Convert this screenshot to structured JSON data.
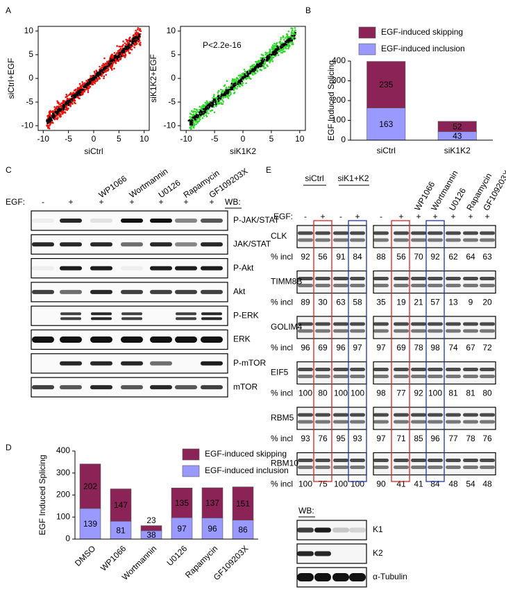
{
  "panel_labels": [
    "A",
    "B",
    "C",
    "D",
    "E"
  ],
  "chart_data": [
    {
      "type": "scatter",
      "xlabel": "siCtrl",
      "ylabel": "siCtrl+EGF",
      "xlim": [
        -11,
        11
      ],
      "ylim": [
        -11,
        11
      ],
      "xticks": [
        -10,
        -5,
        0,
        5,
        10
      ],
      "yticks": [
        -10,
        -5,
        0,
        5,
        10
      ],
      "colors": [
        "#e8140c",
        "#000000"
      ]
    },
    {
      "type": "scatter",
      "xlabel": "siK1K2",
      "ylabel": "siK1K2+EGF",
      "annotation": "P<2.2e-16",
      "xlim": [
        -11,
        11
      ],
      "ylim": [
        -11,
        11
      ],
      "xticks": [
        -10,
        -5,
        0,
        5,
        10
      ],
      "yticks": [
        -10,
        -5,
        0,
        5,
        10
      ],
      "colors": [
        "#2fd82a",
        "#000000"
      ]
    },
    {
      "type": "bar",
      "stacked": true,
      "ylabel": "EGF Induced Splicing",
      "categories": [
        "siCtrl",
        "siK1K2"
      ],
      "series": [
        {
          "name": "EGF-induced inclusion",
          "color": "#9999ff",
          "values": [
            163,
            43
          ]
        },
        {
          "name": "EGF-induced skipping",
          "color": "#8b2357",
          "values": [
            235,
            52
          ]
        }
      ],
      "ylim": [
        0,
        400
      ],
      "yticks": [
        0,
        100,
        200,
        300,
        400
      ]
    },
    {
      "type": "bar",
      "stacked": true,
      "ylabel": "EGF Induced Splicing",
      "categories": [
        "DMSO",
        "WP1066",
        "Wortmannin",
        "U0126",
        "Rapamycin",
        "GF109203X"
      ],
      "series": [
        {
          "name": "EGF-induced inclusion",
          "color": "#9999ff",
          "values": [
            139,
            81,
            38,
            97,
            96,
            86
          ]
        },
        {
          "name": "EGF-induced skipping",
          "color": "#8b2357",
          "values": [
            202,
            147,
            23,
            135,
            137,
            151
          ]
        }
      ],
      "ylim": [
        0,
        400
      ],
      "yticks": [
        0,
        100,
        200,
        300,
        400
      ]
    }
  ],
  "panel_c": {
    "treatments": [
      "WP1066",
      "Wortmannin",
      "U0126",
      "Rapamycin",
      "GF109203X"
    ],
    "egf_label": "EGF:",
    "egf": [
      "-",
      "+",
      "+",
      "+",
      "+",
      "+",
      "+"
    ],
    "wb_label": "WB:",
    "rows": [
      "P-JAK/STAT",
      "JAK/STAT",
      "P-Akt",
      "Akt",
      "P-ERK",
      "ERK",
      "P-mTOR",
      "mTOR"
    ]
  },
  "panel_e": {
    "left_groups": [
      "siCtrl",
      "siK1+K2"
    ],
    "treatments": [
      "WP1066",
      "Wortmannin",
      "U0126",
      "Rapamycin",
      "GF109203X"
    ],
    "egf_label": "EGF:",
    "egf_left": [
      "-",
      "+",
      "-",
      "+"
    ],
    "egf_right": [
      "-",
      "+",
      "+",
      "+",
      "+",
      "+",
      "+"
    ],
    "incl_label": "% incl",
    "genes": [
      {
        "name": "CLK",
        "left": [
          92,
          56,
          91,
          84
        ],
        "right": [
          88,
          56,
          70,
          92,
          62,
          64,
          63
        ]
      },
      {
        "name": "TIMM8B",
        "left": [
          89,
          30,
          63,
          58
        ],
        "right": [
          35,
          19,
          21,
          57,
          13,
          9,
          20
        ]
      },
      {
        "name": "GOLIM4",
        "left": [
          96,
          69,
          96,
          97
        ],
        "right": [
          97,
          69,
          78,
          98,
          74,
          67,
          72
        ]
      },
      {
        "name": "EIF5",
        "left": [
          100,
          80,
          100,
          100
        ],
        "right": [
          98,
          77,
          92,
          100,
          81,
          81,
          80
        ]
      },
      {
        "name": "RBM5",
        "left": [
          93,
          76,
          95,
          93
        ],
        "right": [
          97,
          71,
          85,
          96,
          77,
          78,
          76
        ]
      },
      {
        "name": "RBM10",
        "left": [
          100,
          75,
          100,
          100
        ],
        "right": [
          90,
          41,
          41,
          84,
          48,
          54,
          48
        ]
      }
    ],
    "wb_label": "WB:",
    "wb_rows": [
      "K1",
      "K2",
      "α-Tubulin"
    ]
  }
}
